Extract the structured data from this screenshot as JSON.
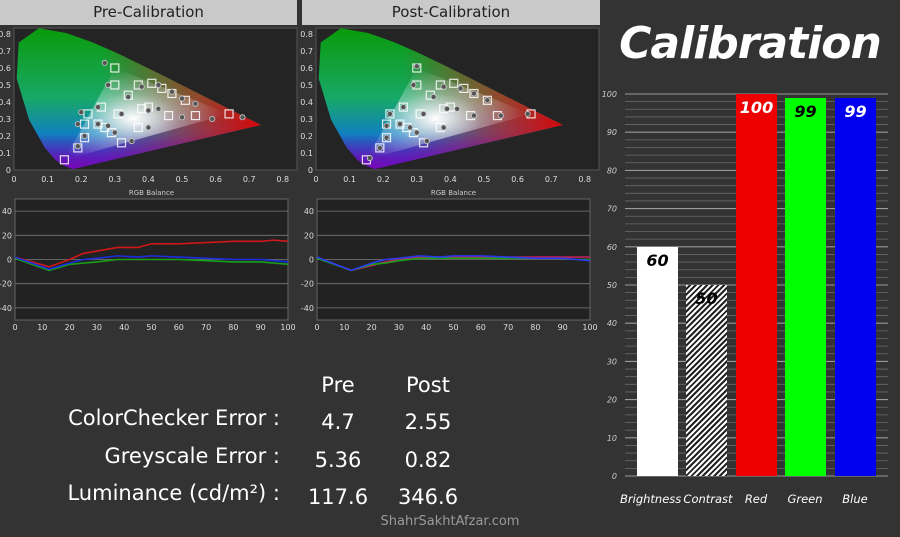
{
  "panels": [
    {
      "title": "Pre-Calibration"
    },
    {
      "title": "Post-Calibration"
    }
  ],
  "summary": {
    "headers": [
      "Pre",
      "Post"
    ],
    "rows": [
      {
        "label": "ColorChecker Error :",
        "pre": "4.7",
        "post": "2.55"
      },
      {
        "label": "Greyscale Error :",
        "pre": "5.36",
        "post": "0.82"
      },
      {
        "label": "Luminance (cd/m²) :",
        "pre": "117.6",
        "post": "346.6"
      }
    ]
  },
  "watermark": "ShahrSakhtAfzar.com",
  "chart_data": [
    {
      "id": "pre-cie",
      "type": "scatter",
      "title": "",
      "xlim": [
        0,
        0.84
      ],
      "ylim": [
        0,
        0.84
      ],
      "xticks": [
        0,
        0.1,
        0.2,
        0.3,
        0.4,
        0.5,
        0.6,
        0.7,
        0.8
      ],
      "yticks": [
        0,
        0.1,
        0.2,
        0.3,
        0.4,
        0.5,
        0.6,
        0.7,
        0.8
      ],
      "gamut": [
        [
          0.64,
          0.33
        ],
        [
          0.3,
          0.6
        ],
        [
          0.15,
          0.06
        ]
      ],
      "targets": [
        [
          0.64,
          0.33
        ],
        [
          0.3,
          0.6
        ],
        [
          0.15,
          0.06
        ],
        [
          0.31,
          0.33
        ],
        [
          0.22,
          0.33
        ],
        [
          0.21,
          0.27
        ],
        [
          0.21,
          0.19
        ],
        [
          0.19,
          0.13
        ],
        [
          0.25,
          0.27
        ],
        [
          0.27,
          0.25
        ],
        [
          0.29,
          0.22
        ],
        [
          0.32,
          0.16
        ],
        [
          0.37,
          0.25
        ],
        [
          0.38,
          0.36
        ],
        [
          0.4,
          0.37
        ],
        [
          0.46,
          0.32
        ],
        [
          0.54,
          0.32
        ],
        [
          0.51,
          0.41
        ],
        [
          0.47,
          0.45
        ],
        [
          0.44,
          0.48
        ],
        [
          0.41,
          0.51
        ],
        [
          0.37,
          0.5
        ],
        [
          0.3,
          0.5
        ],
        [
          0.34,
          0.44
        ],
        [
          0.26,
          0.37
        ]
      ],
      "measured": [
        [
          0.27,
          0.63
        ],
        [
          0.28,
          0.5
        ],
        [
          0.38,
          0.49
        ],
        [
          0.43,
          0.5
        ],
        [
          0.47,
          0.46
        ],
        [
          0.5,
          0.42
        ],
        [
          0.54,
          0.39
        ],
        [
          0.34,
          0.43
        ],
        [
          0.25,
          0.37
        ],
        [
          0.2,
          0.34
        ],
        [
          0.19,
          0.27
        ],
        [
          0.25,
          0.27
        ],
        [
          0.28,
          0.26
        ],
        [
          0.3,
          0.22
        ],
        [
          0.32,
          0.33
        ],
        [
          0.4,
          0.35
        ],
        [
          0.43,
          0.36
        ],
        [
          0.5,
          0.31
        ],
        [
          0.59,
          0.3
        ],
        [
          0.68,
          0.31
        ],
        [
          0.4,
          0.25
        ],
        [
          0.35,
          0.17
        ],
        [
          0.21,
          0.2
        ],
        [
          0.19,
          0.14
        ]
      ]
    },
    {
      "id": "post-cie",
      "type": "scatter",
      "title": "",
      "xlim": [
        0,
        0.84
      ],
      "ylim": [
        0,
        0.84
      ],
      "xticks": [
        0,
        0.1,
        0.2,
        0.3,
        0.4,
        0.5,
        0.6,
        0.7,
        0.8
      ],
      "yticks": [
        0,
        0.1,
        0.2,
        0.3,
        0.4,
        0.5,
        0.6,
        0.7,
        0.8
      ],
      "gamut": [
        [
          0.64,
          0.33
        ],
        [
          0.3,
          0.6
        ],
        [
          0.15,
          0.06
        ]
      ],
      "targets": [
        [
          0.64,
          0.33
        ],
        [
          0.3,
          0.6
        ],
        [
          0.15,
          0.06
        ],
        [
          0.31,
          0.33
        ],
        [
          0.22,
          0.33
        ],
        [
          0.21,
          0.27
        ],
        [
          0.21,
          0.19
        ],
        [
          0.19,
          0.13
        ],
        [
          0.25,
          0.27
        ],
        [
          0.27,
          0.25
        ],
        [
          0.29,
          0.22
        ],
        [
          0.32,
          0.16
        ],
        [
          0.37,
          0.25
        ],
        [
          0.38,
          0.36
        ],
        [
          0.4,
          0.37
        ],
        [
          0.46,
          0.32
        ],
        [
          0.54,
          0.32
        ],
        [
          0.51,
          0.41
        ],
        [
          0.47,
          0.45
        ],
        [
          0.44,
          0.48
        ],
        [
          0.41,
          0.51
        ],
        [
          0.37,
          0.5
        ],
        [
          0.3,
          0.5
        ],
        [
          0.34,
          0.44
        ],
        [
          0.26,
          0.37
        ]
      ],
      "measured": [
        [
          0.3,
          0.61
        ],
        [
          0.29,
          0.5
        ],
        [
          0.38,
          0.49
        ],
        [
          0.43,
          0.48
        ],
        [
          0.47,
          0.45
        ],
        [
          0.51,
          0.41
        ],
        [
          0.35,
          0.43
        ],
        [
          0.26,
          0.37
        ],
        [
          0.22,
          0.33
        ],
        [
          0.21,
          0.26
        ],
        [
          0.25,
          0.27
        ],
        [
          0.28,
          0.25
        ],
        [
          0.3,
          0.22
        ],
        [
          0.32,
          0.33
        ],
        [
          0.39,
          0.36
        ],
        [
          0.42,
          0.36
        ],
        [
          0.47,
          0.32
        ],
        [
          0.55,
          0.32
        ],
        [
          0.63,
          0.33
        ],
        [
          0.38,
          0.25
        ],
        [
          0.33,
          0.17
        ],
        [
          0.21,
          0.19
        ],
        [
          0.19,
          0.13
        ],
        [
          0.16,
          0.07
        ]
      ]
    },
    {
      "id": "pre-rgb",
      "type": "line",
      "title": "RGB Balance",
      "xlim": [
        0,
        100
      ],
      "ylim": [
        -50,
        50
      ],
      "xticks": [
        0,
        10,
        20,
        30,
        40,
        50,
        60,
        70,
        80,
        90,
        100
      ],
      "yticks": [
        -40,
        -20,
        0,
        20,
        40
      ],
      "x": [
        0,
        12.5,
        20,
        25,
        30,
        37.5,
        45,
        50,
        60,
        70,
        80,
        90,
        95,
        100
      ],
      "series": [
        {
          "color": "#d01818",
          "values": [
            2,
            -6,
            0,
            5,
            7,
            10,
            10,
            13,
            13,
            14,
            15,
            15,
            16,
            15
          ]
        },
        {
          "color": "#18a018",
          "values": [
            1,
            -9,
            -4,
            -3,
            -2,
            0,
            0,
            0,
            0,
            -1,
            -2,
            -2,
            -3,
            -4
          ]
        },
        {
          "color": "#1a2ee0",
          "values": [
            2,
            -8,
            -3,
            0,
            1,
            3,
            2,
            3,
            2,
            1,
            0,
            0,
            -1,
            -2
          ]
        }
      ]
    },
    {
      "id": "post-rgb",
      "type": "line",
      "title": "RGB Balance",
      "xlim": [
        0,
        100
      ],
      "ylim": [
        -50,
        50
      ],
      "xticks": [
        0,
        10,
        20,
        30,
        40,
        50,
        60,
        70,
        80,
        90,
        100
      ],
      "yticks": [
        -40,
        -20,
        0,
        20,
        40
      ],
      "x": [
        0,
        12.5,
        20,
        25,
        30,
        37.5,
        45,
        50,
        60,
        70,
        80,
        90,
        95,
        100
      ],
      "series": [
        {
          "color": "#c0205a",
          "values": [
            2,
            -9,
            -5,
            -2,
            0,
            2,
            2,
            2,
            2,
            2,
            2,
            2,
            2,
            2
          ]
        },
        {
          "color": "#18a018",
          "values": [
            1,
            -9,
            -4,
            -3,
            -1,
            1,
            1,
            1,
            1,
            1,
            1,
            1,
            0,
            0
          ]
        },
        {
          "color": "#2a3af0",
          "values": [
            2,
            -9,
            -3,
            0,
            1,
            3,
            2,
            3,
            3,
            2,
            1,
            1,
            0,
            -1
          ]
        }
      ]
    },
    {
      "id": "settings-bars",
      "type": "bar",
      "title": "Calibration",
      "ylim": [
        0,
        100
      ],
      "yticks": [
        0,
        10,
        20,
        30,
        40,
        50,
        60,
        70,
        80,
        90,
        100
      ],
      "grid": true,
      "categories": [
        "Brightness",
        "Contrast",
        "Red",
        "Green",
        "Blue"
      ],
      "values": [
        60,
        50,
        100,
        99,
        99
      ],
      "colors": [
        "#ffffff",
        "hatched",
        "#ee0000",
        "#00ff00",
        "#0000ee"
      ],
      "label_colors": [
        "#000000",
        "#000000",
        "#ffffff",
        "#000000",
        "#ffffff"
      ]
    }
  ]
}
